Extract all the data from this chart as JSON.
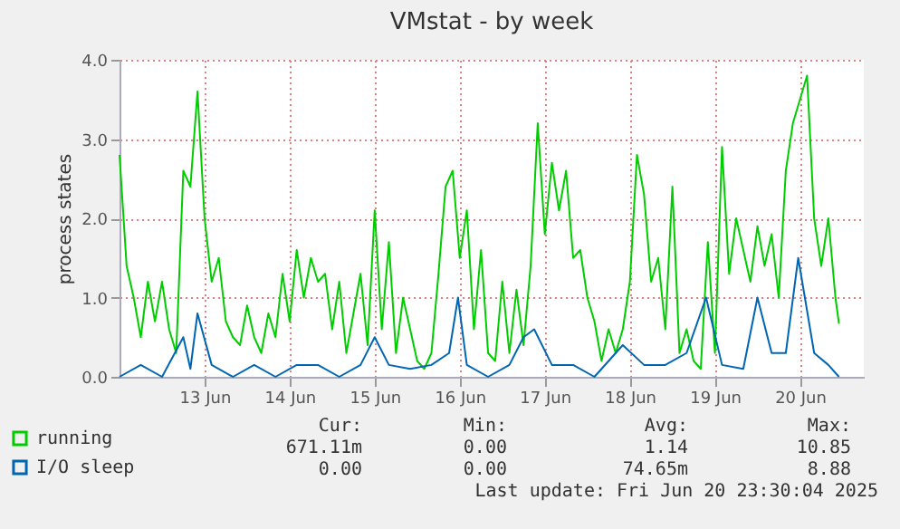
{
  "chart_data": {
    "type": "line",
    "title": "VMstat - by week",
    "ylabel": "process states",
    "xlim": [
      "2025-06-12T12:00",
      "2025-06-21T06:00"
    ],
    "xticks": [
      {
        "value": "2025-06-13T12:00",
        "label": "13 Jun"
      },
      {
        "value": "2025-06-14T12:00",
        "label": "14 Jun"
      },
      {
        "value": "2025-06-15T12:00",
        "label": "15 Jun"
      },
      {
        "value": "2025-06-16T12:00",
        "label": "16 Jun"
      },
      {
        "value": "2025-06-17T12:00",
        "label": "17 Jun"
      },
      {
        "value": "2025-06-18T12:00",
        "label": "18 Jun"
      },
      {
        "value": "2025-06-19T12:00",
        "label": "19 Jun"
      },
      {
        "value": "2025-06-20T12:00",
        "label": "20 Jun"
      }
    ],
    "ylim": [
      0,
      4
    ],
    "yticks": [
      {
        "value": 0,
        "label": "0.0"
      },
      {
        "value": 1,
        "label": "1.0"
      },
      {
        "value": 2,
        "label": "2.0"
      },
      {
        "value": 3,
        "label": "3.0"
      },
      {
        "value": 4,
        "label": "4.0"
      }
    ],
    "grid": true,
    "legend": "bottom left",
    "series": [
      {
        "name": "running",
        "color": "#00cc00",
        "x": [
          "2025-06-12T12:00",
          "2025-06-12T14:00",
          "2025-06-12T16:00",
          "2025-06-12T18:00",
          "2025-06-12T20:00",
          "2025-06-12T22:00",
          "2025-06-13T00:00",
          "2025-06-13T02:00",
          "2025-06-13T04:00",
          "2025-06-13T06:00",
          "2025-06-13T08:00",
          "2025-06-13T10:00",
          "2025-06-13T12:00",
          "2025-06-13T14:00",
          "2025-06-13T16:00",
          "2025-06-13T18:00",
          "2025-06-13T20:00",
          "2025-06-13T22:00",
          "2025-06-14T00:00",
          "2025-06-14T02:00",
          "2025-06-14T04:00",
          "2025-06-14T06:00",
          "2025-06-14T08:00",
          "2025-06-14T10:00",
          "2025-06-14T12:00",
          "2025-06-14T14:00",
          "2025-06-14T16:00",
          "2025-06-14T18:00",
          "2025-06-14T20:00",
          "2025-06-14T22:00",
          "2025-06-15T00:00",
          "2025-06-15T02:00",
          "2025-06-15T04:00",
          "2025-06-15T06:00",
          "2025-06-15T08:00",
          "2025-06-15T10:00",
          "2025-06-15T12:00",
          "2025-06-15T14:00",
          "2025-06-15T16:00",
          "2025-06-15T18:00",
          "2025-06-15T20:00",
          "2025-06-15T22:00",
          "2025-06-16T00:00",
          "2025-06-16T02:00",
          "2025-06-16T04:00",
          "2025-06-16T06:00",
          "2025-06-16T08:00",
          "2025-06-16T10:00",
          "2025-06-16T12:00",
          "2025-06-16T14:00",
          "2025-06-16T16:00",
          "2025-06-16T18:00",
          "2025-06-16T20:00",
          "2025-06-16T22:00",
          "2025-06-17T00:00",
          "2025-06-17T02:00",
          "2025-06-17T04:00",
          "2025-06-17T06:00",
          "2025-06-17T08:00",
          "2025-06-17T10:00",
          "2025-06-17T12:00",
          "2025-06-17T14:00",
          "2025-06-17T16:00",
          "2025-06-17T18:00",
          "2025-06-17T20:00",
          "2025-06-17T22:00",
          "2025-06-18T00:00",
          "2025-06-18T02:00",
          "2025-06-18T04:00",
          "2025-06-18T06:00",
          "2025-06-18T08:00",
          "2025-06-18T10:00",
          "2025-06-18T12:00",
          "2025-06-18T14:00",
          "2025-06-18T16:00",
          "2025-06-18T18:00",
          "2025-06-18T20:00",
          "2025-06-18T22:00",
          "2025-06-19T00:00",
          "2025-06-19T02:00",
          "2025-06-19T04:00",
          "2025-06-19T06:00",
          "2025-06-19T08:00",
          "2025-06-19T10:00",
          "2025-06-19T12:00",
          "2025-06-19T14:00",
          "2025-06-19T16:00",
          "2025-06-19T18:00",
          "2025-06-19T20:00",
          "2025-06-19T22:00",
          "2025-06-20T00:00",
          "2025-06-20T02:00",
          "2025-06-20T04:00",
          "2025-06-20T06:00",
          "2025-06-20T08:00",
          "2025-06-20T10:00",
          "2025-06-20T12:00",
          "2025-06-20T14:00",
          "2025-06-20T16:00",
          "2025-06-20T18:00",
          "2025-06-20T20:00",
          "2025-06-20T22:00",
          "2025-06-20T23:00"
        ],
        "values": [
          2.8,
          1.4,
          1.0,
          0.5,
          1.2,
          0.7,
          1.2,
          0.6,
          0.3,
          2.6,
          2.4,
          3.6,
          2.0,
          1.2,
          1.5,
          0.7,
          0.5,
          0.4,
          0.9,
          0.5,
          0.3,
          0.8,
          0.5,
          1.3,
          0.7,
          1.6,
          1.0,
          1.5,
          1.2,
          1.3,
          0.6,
          1.2,
          0.3,
          0.8,
          1.3,
          0.4,
          2.1,
          0.6,
          1.7,
          0.3,
          1.0,
          0.6,
          0.2,
          0.1,
          0.3,
          1.3,
          2.4,
          2.6,
          1.5,
          2.1,
          0.6,
          1.6,
          0.3,
          0.2,
          1.2,
          0.3,
          1.1,
          0.4,
          1.4,
          3.2,
          1.8,
          2.7,
          2.1,
          2.6,
          1.5,
          1.6,
          1.0,
          0.7,
          0.2,
          0.6,
          0.3,
          0.6,
          1.2,
          2.8,
          2.3,
          1.2,
          1.5,
          0.6,
          2.4,
          0.3,
          0.6,
          0.2,
          0.1,
          1.7,
          0.3,
          2.9,
          1.3,
          2.0,
          1.6,
          1.2,
          1.9,
          1.4,
          1.8,
          1.0,
          2.6,
          3.2,
          3.5,
          3.8,
          2.0,
          1.4,
          2.0,
          1.0,
          0.67
        ]
      },
      {
        "name": "I/O sleep",
        "color": "#0066b3",
        "x": [
          "2025-06-12T12:00",
          "2025-06-12T18:00",
          "2025-06-13T00:00",
          "2025-06-13T06:00",
          "2025-06-13T08:00",
          "2025-06-13T10:00",
          "2025-06-13T14:00",
          "2025-06-13T20:00",
          "2025-06-14T02:00",
          "2025-06-14T08:00",
          "2025-06-14T14:00",
          "2025-06-14T20:00",
          "2025-06-15T02:00",
          "2025-06-15T08:00",
          "2025-06-15T12:00",
          "2025-06-15T16:00",
          "2025-06-15T22:00",
          "2025-06-16T04:00",
          "2025-06-16T09:00",
          "2025-06-16T11:30",
          "2025-06-16T14:00",
          "2025-06-16T20:00",
          "2025-06-17T02:00",
          "2025-06-17T06:00",
          "2025-06-17T09:00",
          "2025-06-17T14:00",
          "2025-06-17T20:00",
          "2025-06-18T02:00",
          "2025-06-18T10:00",
          "2025-06-18T16:00",
          "2025-06-18T22:00",
          "2025-06-19T04:00",
          "2025-06-19T09:30",
          "2025-06-19T14:00",
          "2025-06-19T20:00",
          "2025-06-20T00:00",
          "2025-06-20T04:00",
          "2025-06-20T08:00",
          "2025-06-20T11:30",
          "2025-06-20T16:00",
          "2025-06-20T20:00",
          "2025-06-20T23:00"
        ],
        "values": [
          0,
          0.15,
          0,
          0.5,
          0.1,
          0.8,
          0.15,
          0,
          0.15,
          0,
          0.15,
          0.15,
          0,
          0.15,
          0.5,
          0.15,
          0.1,
          0.15,
          0.3,
          1.0,
          0.15,
          0,
          0.15,
          0.5,
          0.6,
          0.15,
          0.15,
          0,
          0.4,
          0.15,
          0.15,
          0.3,
          1.0,
          0.15,
          0.1,
          1.0,
          0.3,
          0.3,
          1.5,
          0.3,
          0.15,
          0
        ]
      }
    ],
    "annotations": [
      "Cur:",
      "Min:",
      "Avg:",
      "Max:",
      "671.11m",
      "0.00",
      "1.14",
      "10.85",
      "0.00",
      "0.00",
      "74.65m",
      "8.88",
      "Last update: Fri Jun 20 23:30:04 2025"
    ]
  }
}
